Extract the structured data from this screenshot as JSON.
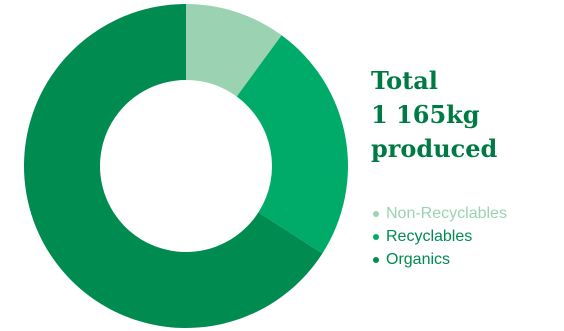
{
  "heading": {
    "line1": "Total",
    "line2": "1 165kg",
    "line3": "produced"
  },
  "chart_data": {
    "type": "pie",
    "variant": "donut",
    "total": 1165,
    "unit": "kg",
    "categories": [
      "Non-Recyclables",
      "Recyclables",
      "Organics"
    ],
    "values": [
      117,
      280,
      768
    ],
    "colors": [
      "#9bd2b1",
      "#00ab69",
      "#008b51"
    ],
    "label_colors": [
      "#9bd2b1",
      "#008b51",
      "#008b51"
    ],
    "legend_position": "right"
  },
  "colors": {
    "heading": "#007a45",
    "background": "#ffffff"
  }
}
